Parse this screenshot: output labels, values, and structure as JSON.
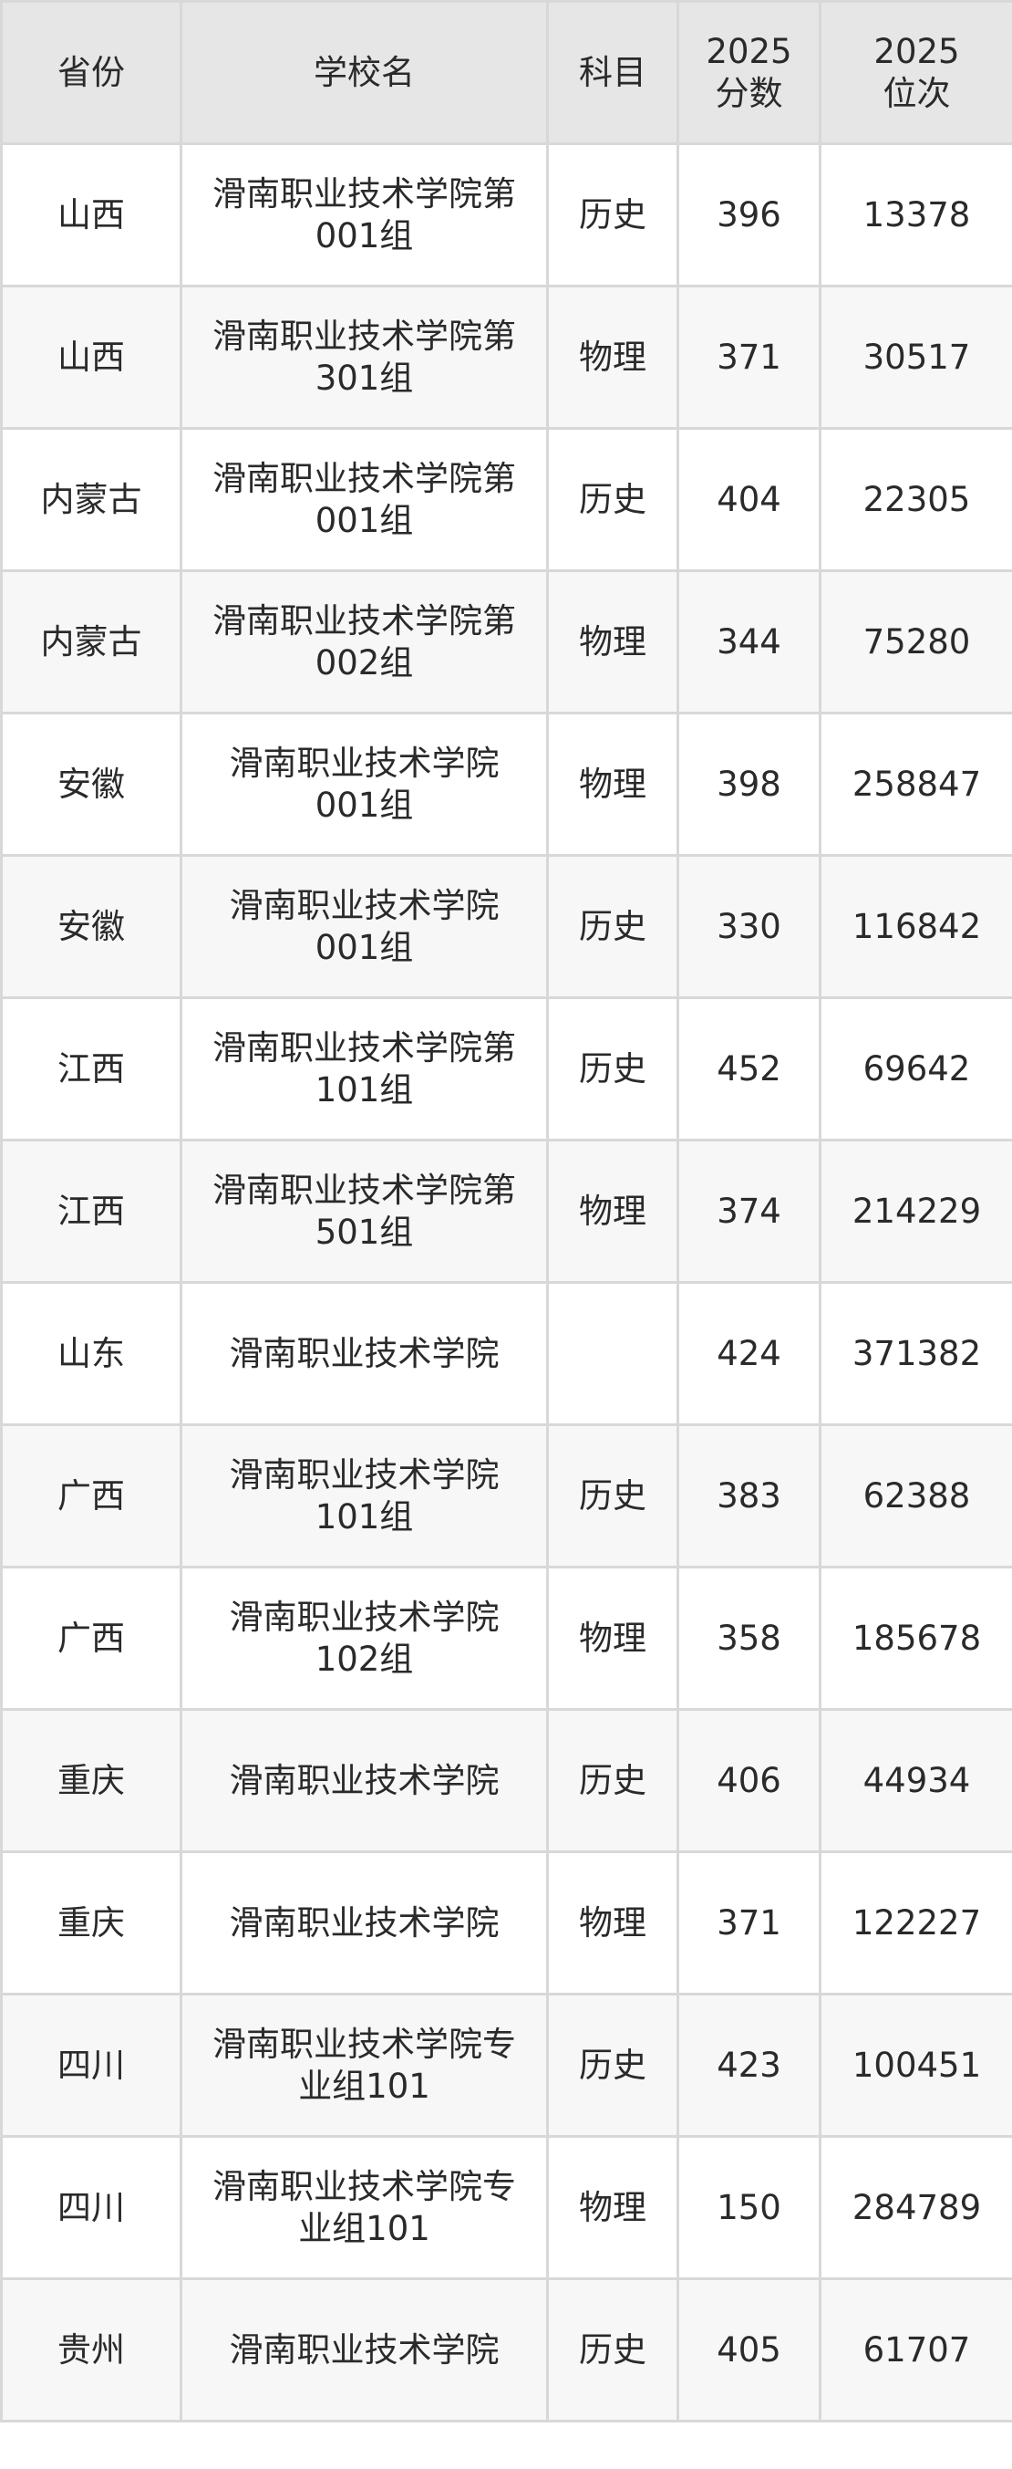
{
  "header": {
    "province": "省份",
    "school": "学校名",
    "subject": "科目",
    "score": [
      "2025",
      "分数"
    ],
    "rank": [
      "2025",
      "位次"
    ]
  },
  "rows": [
    {
      "province": "山西",
      "school": "滑南职业技术学院第001组",
      "subject": "历史",
      "score": "396",
      "rank": "13378"
    },
    {
      "province": "山西",
      "school": "滑南职业技术学院第301组",
      "subject": "物理",
      "score": "371",
      "rank": "30517"
    },
    {
      "province": "内蒙古",
      "school": "滑南职业技术学院第001组",
      "subject": "历史",
      "score": "404",
      "rank": "22305"
    },
    {
      "province": "内蒙古",
      "school": "滑南职业技术学院第002组",
      "subject": "物理",
      "score": "344",
      "rank": "75280"
    },
    {
      "province": "安徽",
      "school": "滑南职业技术学院001组",
      "subject": "物理",
      "score": "398",
      "rank": "258847"
    },
    {
      "province": "安徽",
      "school": "滑南职业技术学院001组",
      "subject": "历史",
      "score": "330",
      "rank": "116842"
    },
    {
      "province": "江西",
      "school": "滑南职业技术学院第101组",
      "subject": "历史",
      "score": "452",
      "rank": "69642"
    },
    {
      "province": "江西",
      "school": "滑南职业技术学院第501组",
      "subject": "物理",
      "score": "374",
      "rank": "214229"
    },
    {
      "province": "山东",
      "school": "滑南职业技术学院",
      "subject": "",
      "score": "424",
      "rank": "371382"
    },
    {
      "province": "广西",
      "school": "滑南职业技术学院101组",
      "subject": "历史",
      "score": "383",
      "rank": "62388"
    },
    {
      "province": "广西",
      "school": "滑南职业技术学院102组",
      "subject": "物理",
      "score": "358",
      "rank": "185678"
    },
    {
      "province": "重庆",
      "school": "滑南职业技术学院",
      "subject": "历史",
      "score": "406",
      "rank": "44934"
    },
    {
      "province": "重庆",
      "school": "滑南职业技术学院",
      "subject": "物理",
      "score": "371",
      "rank": "122227"
    },
    {
      "province": "四川",
      "school": "滑南职业技术学院专业组101",
      "subject": "历史",
      "score": "423",
      "rank": "100451"
    },
    {
      "province": "四川",
      "school": "滑南职业技术学院专业组101",
      "subject": "物理",
      "score": "150",
      "rank": "284789"
    },
    {
      "province": "贵州",
      "school": "滑南职业技术学院",
      "subject": "历史",
      "score": "405",
      "rank": "61707"
    }
  ],
  "colors": {
    "header_bg": "#e6e6e6",
    "alt_row_bg": "#f7f7f7",
    "border": "#d8d8d8",
    "text": "#2a2a2a"
  }
}
